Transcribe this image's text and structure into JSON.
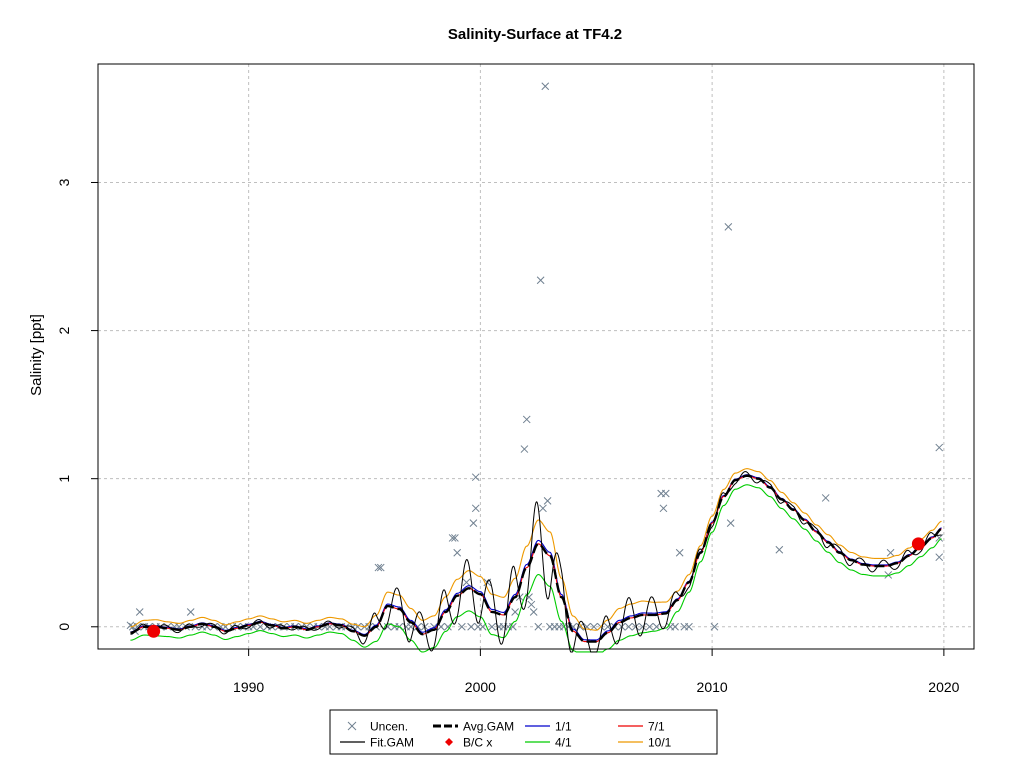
{
  "chart_data": {
    "type": "line",
    "title": "Salinity-Surface at TF4.2",
    "xlabel": "",
    "ylabel": "Salinity [ppt]",
    "xlim": [
      1983.5,
      2021.3
    ],
    "ylim": [
      -0.15,
      3.8
    ],
    "x_ticks": [
      1990,
      2000,
      2010,
      2020
    ],
    "y_ticks": [
      0,
      1,
      2,
      3
    ],
    "grid": true,
    "legend_position": "bottom-center",
    "legend": [
      {
        "label": "Uncen.",
        "kind": "marker-x",
        "color": "#708090"
      },
      {
        "label": "Avg.GAM",
        "kind": "line-dashed",
        "color": "#000000"
      },
      {
        "label": "1/1",
        "kind": "line",
        "color": "#0000cc"
      },
      {
        "label": "7/1",
        "kind": "line",
        "color": "#ee0000"
      },
      {
        "label": "Fit.GAM",
        "kind": "line",
        "color": "#000000"
      },
      {
        "label": "B/C x",
        "kind": "marker-diamond",
        "color": "#ee0000"
      },
      {
        "label": "4/1",
        "kind": "line",
        "color": "#00cc00"
      },
      {
        "label": "10/1",
        "kind": "line",
        "color": "#ee9900"
      }
    ],
    "colors": {
      "points": "#708090",
      "fit": "#000000",
      "avg": "#000000",
      "s1": "#0000cc",
      "s4": "#00cc00",
      "s7": "#ee0000",
      "s10": "#ee9900",
      "bc": "#ee0000",
      "grid": "#bfbfbf"
    },
    "avg_gam": {
      "x": [
        1984.9,
        1985.5,
        1986.0,
        1986.5,
        1987.0,
        1987.5,
        1988.0,
        1988.5,
        1989.0,
        1989.5,
        1990.0,
        1990.5,
        1991.0,
        1991.5,
        1992.0,
        1992.5,
        1993.0,
        1993.5,
        1994.0,
        1994.5,
        1995.0,
        1995.5,
        1996.0,
        1996.5,
        1997.0,
        1997.5,
        1998.0,
        1998.5,
        1999.0,
        1999.5,
        2000.0,
        2000.5,
        2001.0,
        2001.5,
        2002.0,
        2002.5,
        2003.0,
        2003.5,
        2004.0,
        2004.5,
        2005.0,
        2005.5,
        2006.0,
        2006.5,
        2007.0,
        2007.5,
        2008.0,
        2008.5,
        2009.0,
        2009.5,
        2010.0,
        2010.5,
        2011.0,
        2011.5,
        2012.0,
        2012.5,
        2013.0,
        2013.5,
        2014.0,
        2014.5,
        2015.0,
        2015.5,
        2016.0,
        2016.5,
        2017.0,
        2017.5,
        2018.0,
        2018.5,
        2019.0,
        2019.5,
        2019.9
      ],
      "y": [
        -0.04,
        0.0,
        0.0,
        -0.01,
        -0.02,
        0.0,
        0.02,
        0.0,
        -0.03,
        -0.01,
        0.01,
        0.03,
        0.01,
        -0.01,
        0.0,
        -0.02,
        0.0,
        0.02,
        0.01,
        -0.03,
        -0.06,
        0.0,
        0.14,
        0.12,
        0.03,
        -0.05,
        -0.02,
        0.1,
        0.21,
        0.26,
        0.22,
        0.1,
        0.08,
        0.2,
        0.4,
        0.56,
        0.48,
        0.2,
        -0.03,
        -0.1,
        -0.1,
        -0.04,
        0.03,
        0.06,
        0.08,
        0.08,
        0.09,
        0.18,
        0.3,
        0.5,
        0.7,
        0.88,
        0.99,
        1.02,
        1.0,
        0.94,
        0.86,
        0.79,
        0.72,
        0.64,
        0.57,
        0.5,
        0.45,
        0.42,
        0.41,
        0.41,
        0.43,
        0.48,
        0.54,
        0.6,
        0.66
      ]
    },
    "fit_amplitude": [
      0.01,
      0.02,
      0.03,
      0.02,
      0.02,
      0.02,
      0.02,
      0.02,
      0.02,
      0.02,
      0.02,
      0.02,
      0.02,
      0.02,
      0.02,
      0.02,
      0.02,
      0.02,
      0.02,
      0.03,
      0.06,
      0.1,
      0.14,
      0.14,
      0.14,
      0.14,
      0.14,
      0.16,
      0.18,
      0.2,
      0.2,
      0.2,
      0.2,
      0.22,
      0.26,
      0.3,
      0.3,
      0.22,
      0.16,
      0.12,
      0.1,
      0.12,
      0.14,
      0.14,
      0.14,
      0.12,
      0.1,
      0.06,
      0.04,
      0.03,
      0.03,
      0.03,
      0.03,
      0.03,
      0.03,
      0.03,
      0.03,
      0.03,
      0.03,
      0.03,
      0.04,
      0.04,
      0.04,
      0.04,
      0.04,
      0.04,
      0.04,
      0.04,
      0.04,
      0.04,
      0.04
    ],
    "seasonal_offsets": {
      "s1": 0.01,
      "s4": -0.09,
      "s7": 0.0,
      "s10": 0.07
    },
    "bc_points": [
      {
        "x": 1985.9,
        "y": -0.03
      },
      {
        "x": 2018.9,
        "y": 0.56
      }
    ],
    "points": [
      [
        1984.9,
        0.01
      ],
      [
        1985.0,
        0.0
      ],
      [
        1985.1,
        -0.03
      ],
      [
        1985.2,
        0.0
      ],
      [
        1985.3,
        0.1
      ],
      [
        1985.5,
        0.0
      ],
      [
        1985.7,
        0.0
      ],
      [
        1986.0,
        0.0
      ],
      [
        1986.2,
        0.0
      ],
      [
        1986.5,
        0.0
      ],
      [
        1986.8,
        0.0
      ],
      [
        1987.0,
        0.0
      ],
      [
        1987.3,
        0.0
      ],
      [
        1987.5,
        0.1
      ],
      [
        1987.7,
        0.0
      ],
      [
        1988.0,
        0.0
      ],
      [
        1988.2,
        0.0
      ],
      [
        1988.5,
        0.0
      ],
      [
        1988.8,
        0.0
      ],
      [
        1989.0,
        0.0
      ],
      [
        1989.3,
        0.0
      ],
      [
        1989.5,
        0.0
      ],
      [
        1989.8,
        0.0
      ],
      [
        1990.0,
        0.0
      ],
      [
        1990.2,
        0.0
      ],
      [
        1990.5,
        0.0
      ],
      [
        1990.8,
        0.0
      ],
      [
        1991.0,
        0.0
      ],
      [
        1991.3,
        0.0
      ],
      [
        1991.5,
        0.0
      ],
      [
        1991.8,
        0.0
      ],
      [
        1992.0,
        0.0
      ],
      [
        1992.3,
        0.0
      ],
      [
        1992.5,
        0.0
      ],
      [
        1992.8,
        0.0
      ],
      [
        1993.0,
        0.0
      ],
      [
        1993.3,
        0.0
      ],
      [
        1993.5,
        0.0
      ],
      [
        1993.8,
        0.0
      ],
      [
        1994.0,
        0.0
      ],
      [
        1994.2,
        0.0
      ],
      [
        1994.5,
        0.0
      ],
      [
        1994.7,
        0.0
      ],
      [
        1995.0,
        0.0
      ],
      [
        1995.2,
        0.0
      ],
      [
        1995.5,
        0.0
      ],
      [
        1995.6,
        0.4
      ],
      [
        1995.7,
        0.4
      ],
      [
        1996.0,
        0.0
      ],
      [
        1996.3,
        0.0
      ],
      [
        1996.5,
        0.0
      ],
      [
        1996.8,
        0.0
      ],
      [
        1997.0,
        0.0
      ],
      [
        1997.3,
        0.0
      ],
      [
        1997.6,
        0.0
      ],
      [
        1998.0,
        0.0
      ],
      [
        1998.3,
        0.0
      ],
      [
        1998.6,
        0.0
      ],
      [
        1998.8,
        0.6
      ],
      [
        1998.9,
        0.6
      ],
      [
        1999.0,
        0.5
      ],
      [
        1999.2,
        0.0
      ],
      [
        1999.4,
        0.3
      ],
      [
        1999.6,
        0.0
      ],
      [
        1999.7,
        0.7
      ],
      [
        1999.8,
        0.8
      ],
      [
        1999.8,
        1.01
      ],
      [
        1999.9,
        0.0
      ],
      [
        2000.1,
        0.0
      ],
      [
        2000.3,
        0.3
      ],
      [
        2000.5,
        0.0
      ],
      [
        2000.8,
        0.0
      ],
      [
        2001.0,
        0.0
      ],
      [
        2001.2,
        0.0
      ],
      [
        2001.4,
        0.0
      ],
      [
        2001.5,
        0.1
      ],
      [
        2001.7,
        0.2
      ],
      [
        2001.9,
        1.2
      ],
      [
        2002.0,
        1.4
      ],
      [
        2002.1,
        0.2
      ],
      [
        2002.2,
        0.15
      ],
      [
        2002.3,
        0.1
      ],
      [
        2002.5,
        0.0
      ],
      [
        2002.6,
        2.34
      ],
      [
        2002.7,
        0.8
      ],
      [
        2002.8,
        3.65
      ],
      [
        2002.9,
        0.85
      ],
      [
        2003.0,
        0.0
      ],
      [
        2003.2,
        0.0
      ],
      [
        2003.4,
        0.0
      ],
      [
        2003.6,
        0.0
      ],
      [
        2003.8,
        0.0
      ],
      [
        2004.0,
        0.0
      ],
      [
        2004.3,
        0.0
      ],
      [
        2004.6,
        0.0
      ],
      [
        2004.9,
        0.0
      ],
      [
        2005.2,
        0.0
      ],
      [
        2005.5,
        0.0
      ],
      [
        2005.8,
        0.0
      ],
      [
        2006.1,
        0.0
      ],
      [
        2006.4,
        0.0
      ],
      [
        2006.7,
        0.0
      ],
      [
        2007.0,
        0.0
      ],
      [
        2007.3,
        0.0
      ],
      [
        2007.6,
        0.0
      ],
      [
        2007.8,
        0.9
      ],
      [
        2007.9,
        0.8
      ],
      [
        2008.0,
        0.9
      ],
      [
        2008.2,
        0.0
      ],
      [
        2008.4,
        0.0
      ],
      [
        2008.6,
        0.5
      ],
      [
        2008.8,
        0.0
      ],
      [
        2009.0,
        0.0
      ],
      [
        2010.1,
        0.0
      ],
      [
        2010.7,
        2.7
      ],
      [
        2010.8,
        0.7
      ],
      [
        2012.9,
        0.52
      ],
      [
        2014.9,
        0.87
      ],
      [
        2017.6,
        0.35
      ],
      [
        2017.7,
        0.5
      ],
      [
        2019.8,
        0.47
      ],
      [
        2019.8,
        0.6
      ],
      [
        2019.8,
        1.21
      ]
    ]
  }
}
